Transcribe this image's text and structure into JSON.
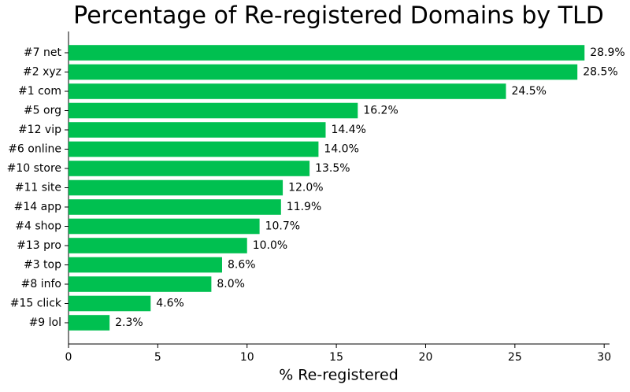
{
  "chart_data": {
    "type": "barh",
    "title": "Percentage of Re-registered Domains by TLD",
    "xlabel": "% Re-registered",
    "categories": [
      "#7 net",
      "#2 xyz",
      "#1 com",
      "#5 org",
      "#12 vip",
      "#6 online",
      "#10 store",
      "#11 site",
      "#14 app",
      "#4 shop",
      "#13 pro",
      "#3 top",
      "#8 info",
      "#15 click",
      "#9 lol"
    ],
    "values": [
      28.9,
      28.5,
      24.5,
      16.2,
      14.4,
      14.0,
      13.5,
      12.0,
      11.9,
      10.7,
      10.0,
      8.6,
      8.0,
      4.6,
      2.3
    ],
    "value_labels": [
      "28.9%",
      "28.5%",
      "24.5%",
      "16.2%",
      "14.4%",
      "14.0%",
      "13.5%",
      "12.0%",
      "11.9%",
      "10.7%",
      "10.0%",
      "8.6%",
      "8.0%",
      "4.6%",
      "2.3%"
    ],
    "color": "#00c050",
    "xlim": [
      0,
      30.3
    ],
    "xticks": [
      0,
      5,
      10,
      15,
      20,
      25,
      30
    ]
  }
}
